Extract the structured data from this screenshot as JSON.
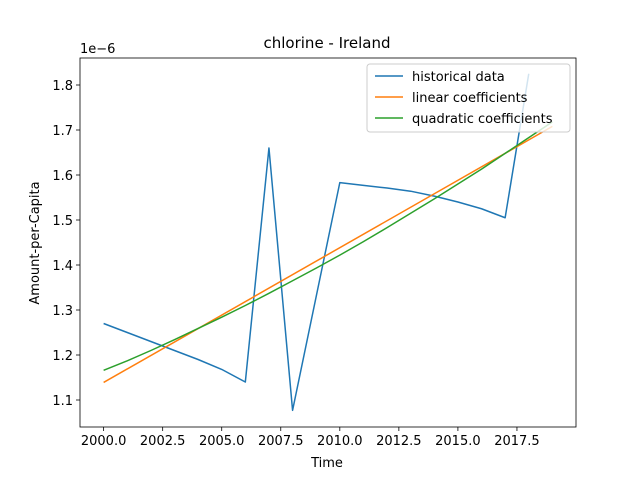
{
  "chart_data": {
    "type": "line",
    "title": "chlorine - Ireland",
    "xlabel": "Time",
    "ylabel": "Amount-per-Capita",
    "y_scale_label": "1e−6",
    "xlim": [
      1999,
      2020
    ],
    "ylim": [
      1.04,
      1.86
    ],
    "x_ticks": [
      2000.0,
      2002.5,
      2005.0,
      2007.5,
      2010.0,
      2012.5,
      2015.0,
      2017.5
    ],
    "x_tick_labels": [
      "2000.0",
      "2002.5",
      "2005.0",
      "2007.5",
      "2010.0",
      "2012.5",
      "2015.0",
      "2017.5"
    ],
    "y_ticks": [
      1.1,
      1.2,
      1.3,
      1.4,
      1.5,
      1.6,
      1.7,
      1.8
    ],
    "y_tick_labels": [
      "1.1",
      "1.2",
      "1.3",
      "1.4",
      "1.5",
      "1.6",
      "1.7",
      "1.8"
    ],
    "grid": false,
    "legend_position": "top-right",
    "series": [
      {
        "name": "historical data",
        "color": "#1f77b4",
        "x": [
          2000,
          2001,
          2002,
          2003,
          2004,
          2005,
          2006,
          2007,
          2008,
          2009,
          2010,
          2011,
          2012,
          2013,
          2014,
          2015,
          2016,
          2017,
          2018
        ],
        "y": [
          1.27,
          1.25,
          1.23,
          1.21,
          1.19,
          1.168,
          1.14,
          1.66,
          1.077,
          1.33,
          1.583,
          1.577,
          1.571,
          1.564,
          1.553,
          1.54,
          1.525,
          1.505,
          1.825
        ]
      },
      {
        "name": "linear coefficients",
        "color": "#ff7f0e",
        "x": [
          2000,
          2019
        ],
        "y": [
          1.139,
          1.708
        ]
      },
      {
        "name": "quadratic coefficients",
        "color": "#2ca02c",
        "x": [
          2000,
          2001,
          2002,
          2003,
          2004,
          2005,
          2006,
          2007,
          2008,
          2009,
          2010,
          2011,
          2012,
          2013,
          2014,
          2015,
          2016,
          2017,
          2018,
          2019
        ],
        "y": [
          1.166,
          1.187,
          1.21,
          1.234,
          1.259,
          1.284,
          1.31,
          1.337,
          1.365,
          1.393,
          1.422,
          1.452,
          1.483,
          1.515,
          1.547,
          1.58,
          1.613,
          1.648,
          1.683,
          1.718
        ]
      }
    ]
  }
}
